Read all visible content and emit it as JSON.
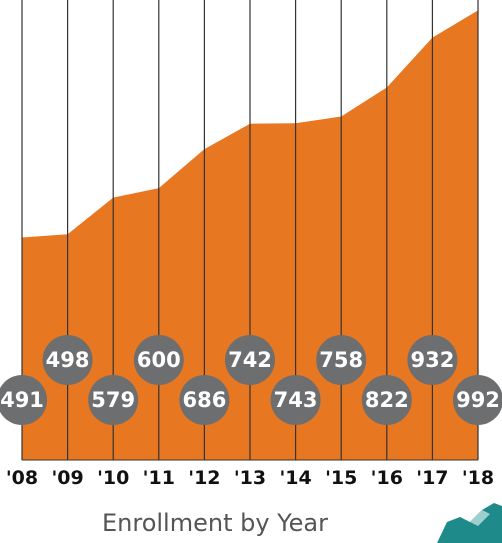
{
  "chart_data": {
    "type": "area",
    "title": "Enrollment by Year",
    "categories": [
      "'08",
      "'09",
      "'10",
      "'11",
      "'12",
      "'13",
      "'14",
      "'15",
      "'16",
      "'17",
      "'18"
    ],
    "values": [
      491,
      498,
      579,
      600,
      686,
      742,
      743,
      758,
      822,
      932,
      992
    ],
    "color": "#e87722",
    "ylim": [
      0,
      1015
    ]
  }
}
